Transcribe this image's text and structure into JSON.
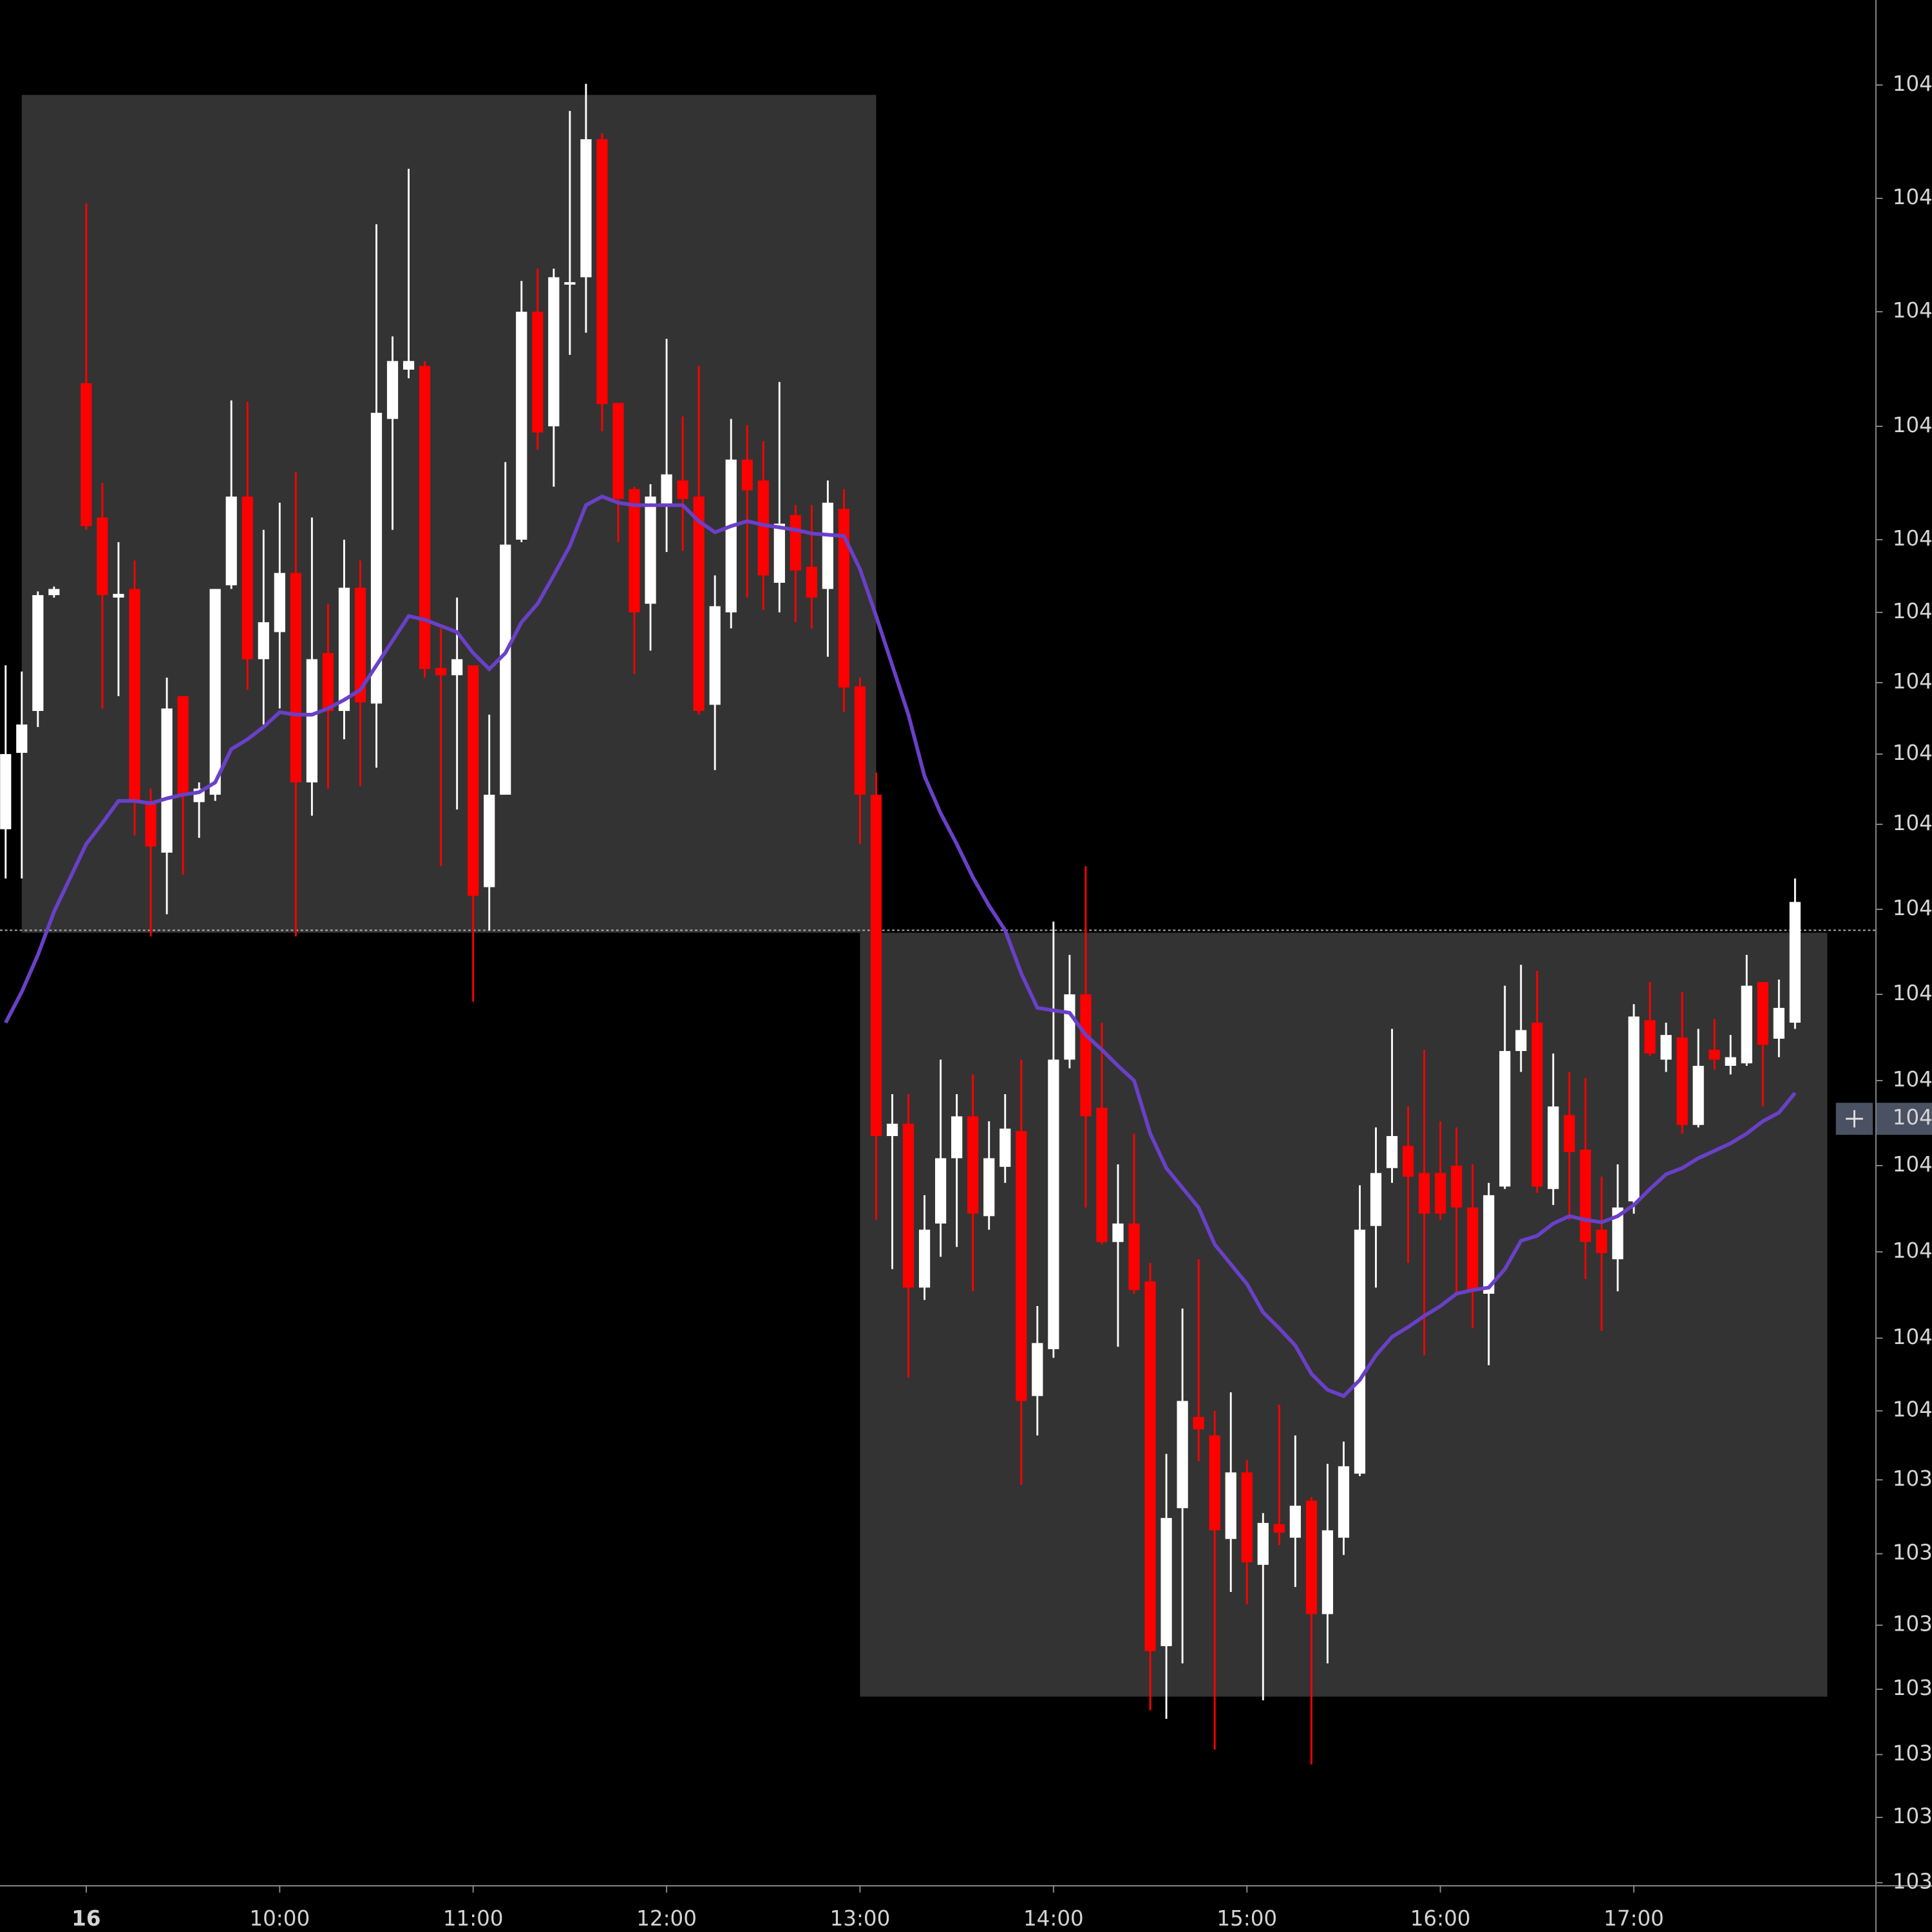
{
  "chart_data": {
    "type": "candlestick",
    "xlim": [
      513.25,
      1094.9
    ],
    "ylim": [
      1038.35,
      1046
    ],
    "xticks": [
      {
        "value": 540,
        "label": "16"
      },
      {
        "value": 600,
        "label": "10:00"
      },
      {
        "value": 660,
        "label": "11:00"
      },
      {
        "value": 720,
        "label": "12:00"
      },
      {
        "value": 780,
        "label": "13:00"
      },
      {
        "value": 840,
        "label": "14:00"
      },
      {
        "value": 900,
        "label": "15:00"
      },
      {
        "value": 960,
        "label": "16:00"
      },
      {
        "value": 1020,
        "label": "17:00"
      }
    ],
    "yticks": [
      {
        "value": 1045.655,
        "label": "104"
      },
      {
        "value": 1045.195,
        "label": "104"
      },
      {
        "value": 1044.735,
        "label": "104"
      },
      {
        "value": 1044.27,
        "label": "104"
      },
      {
        "value": 1043.81,
        "label": "104"
      },
      {
        "value": 1043.515,
        "label": "104"
      },
      {
        "value": 1043.23,
        "label": "104"
      },
      {
        "value": 1042.94,
        "label": "104"
      },
      {
        "value": 1042.655,
        "label": "104"
      },
      {
        "value": 1042.31,
        "label": "104"
      },
      {
        "value": 1041.965,
        "label": "104"
      },
      {
        "value": 1041.615,
        "label": "104"
      },
      {
        "value": 1041.27,
        "label": "104"
      },
      {
        "value": 1040.92,
        "label": "104"
      },
      {
        "value": 1040.57,
        "label": "104"
      },
      {
        "value": 1040.275,
        "label": "104"
      },
      {
        "value": 1039.995,
        "label": "103"
      },
      {
        "value": 1039.695,
        "label": "103"
      },
      {
        "value": 1039.405,
        "label": "103"
      },
      {
        "value": 1039.145,
        "label": "103"
      },
      {
        "value": 1038.88,
        "label": "103"
      },
      {
        "value": 1038.625,
        "label": "103"
      },
      {
        "value": 1038.36,
        "label": "103"
      }
    ],
    "up_color": "#ffffff",
    "down_color": "#ff0000",
    "x": [
      515,
      520,
      525,
      530,
      540,
      545,
      550,
      555,
      560,
      565,
      570,
      575,
      580,
      585,
      590,
      595,
      600,
      605,
      610,
      615,
      620,
      625,
      630,
      635,
      640,
      645,
      650,
      655,
      660,
      665,
      670,
      675,
      680,
      685,
      690,
      695,
      700,
      705,
      710,
      715,
      720,
      725,
      730,
      735,
      740,
      745,
      750,
      755,
      760,
      765,
      770,
      775,
      780,
      785,
      790,
      795,
      800,
      805,
      810,
      815,
      820,
      825,
      830,
      835,
      840,
      845,
      850,
      855,
      860,
      865,
      870,
      875,
      880,
      885,
      890,
      895,
      900,
      905,
      910,
      915,
      920,
      925,
      930,
      935,
      940,
      945,
      950,
      955,
      960,
      965,
      970,
      975,
      980,
      985,
      990,
      995,
      1000,
      1005,
      1010,
      1015,
      1020,
      1025,
      1030,
      1035,
      1040,
      1045,
      1050,
      1055,
      1060,
      1065,
      1070
    ],
    "open": [
      1042.635,
      1042.945,
      1043.115,
      1043.585,
      1044.445,
      1043.9,
      1043.575,
      1043.61,
      1042.75,
      1042.54,
      1043.175,
      1042.745,
      1042.775,
      1043.625,
      1043.985,
      1043.325,
      1043.435,
      1043.675,
      1042.825,
      1043.35,
      1043.115,
      1043.615,
      1043.145,
      1044.3,
      1044.5,
      1044.515,
      1043.29,
      1043.26,
      1043.3,
      1042.4,
      1042.775,
      1043.81,
      1044.735,
      1044.27,
      1044.845,
      1044.875,
      1045.435,
      1044.365,
      1044.015,
      1043.55,
      1043.95,
      1044.05,
      1043.985,
      1043.14,
      1043.515,
      1044.135,
      1044.05,
      1043.635,
      1043.91,
      1043.7,
      1043.61,
      1043.935,
      1043.215,
      1042.775,
      1041.39,
      1041.44,
      1040.775,
      1041.035,
      1041.3,
      1041.47,
      1041.065,
      1041.265,
      1041.41,
      1040.335,
      1040.525,
      1041.7,
      1041.965,
      1041.505,
      1040.96,
      1041.035,
      1040.8,
      1039.32,
      1039.88,
      1040.25,
      1040.175,
      1039.755,
      1040.025,
      1039.65,
      1039.815,
      1039.76,
      1039.91,
      1039.45,
      1039.76,
      1040.02,
      1041.025,
      1041.26,
      1041.35,
      1041.24,
      1041.24,
      1041.27,
      1041.1,
      1040.75,
      1041.185,
      1041.735,
      1041.85,
      1041.175,
      1041.475,
      1041.335,
      1041.01,
      1040.89,
      1041.125,
      1041.86,
      1041.7,
      1041.79,
      1041.435,
      1041.74,
      1041.675,
      1041.685,
      1042.015,
      1041.785,
      1041.85
    ],
    "high": [
      1043.3,
      1043.275,
      1043.6,
      1043.62,
      1045.175,
      1044.04,
      1043.8,
      1043.725,
      1042.8,
      1043.25,
      1043.175,
      1042.825,
      1043.61,
      1044.375,
      1044.37,
      1043.85,
      1043.96,
      1044.085,
      1043.9,
      1043.55,
      1043.81,
      1043.725,
      1045.09,
      1044.635,
      1045.315,
      1044.535,
      1043.45,
      1043.575,
      1043.3,
      1043.1,
      1044.125,
      1044.86,
      1044.91,
      1044.91,
      1045.55,
      1045.66,
      1045.46,
      1044.365,
      1044.025,
      1044.035,
      1044.625,
      1044.31,
      1044.515,
      1043.665,
      1044.3,
      1044.275,
      1044.21,
      1044.45,
      1043.95,
      1043.95,
      1044.05,
      1044.015,
      1043.25,
      1042.865,
      1041.56,
      1041.56,
      1041.15,
      1041.7,
      1041.56,
      1041.64,
      1041.45,
      1041.56,
      1041.7,
      1040.7,
      1042.26,
      1042.125,
      1042.485,
      1041.85,
      1041.275,
      1041.4,
      1040.875,
      1040.1,
      1040.69,
      1040.89,
      1040.275,
      1040.35,
      1040.075,
      1039.86,
      1040.3,
      1040.175,
      1039.925,
      1040.06,
      1040.15,
      1041.19,
      1041.425,
      1041.825,
      1041.51,
      1041.74,
      1041.45,
      1041.425,
      1041.275,
      1041.2,
      1042.0,
      1042.085,
      1042.06,
      1041.725,
      1041.65,
      1041.625,
      1041.225,
      1041.275,
      1041.925,
      1042.015,
      1041.85,
      1041.975,
      1041.825,
      1041.865,
      1041.8,
      1042.125,
      1042.015,
      1042.025,
      1042.435
    ],
    "low": [
      1042.435,
      1042.435,
      1043.05,
      1043.575,
      1043.85,
      1043.125,
      1043.175,
      1042.61,
      1042.2,
      1042.29,
      1042.45,
      1042.6,
      1042.75,
      1043.61,
      1043.2,
      1043.06,
      1043.125,
      1042.2,
      1042.69,
      1042.8,
      1043.0,
      1042.81,
      1042.885,
      1043.85,
      1044.465,
      1043.25,
      1042.485,
      1042.715,
      1041.935,
      1042.225,
      1042.775,
      1043.8,
      1044.175,
      1044.025,
      1044.56,
      1044.65,
      1044.25,
      1043.8,
      1043.265,
      1043.36,
      1043.76,
      1043.765,
      1043.1,
      1042.875,
      1043.45,
      1043.575,
      1043.525,
      1043.515,
      1043.475,
      1043.45,
      1043.335,
      1043.11,
      1042.575,
      1041.05,
      1040.85,
      1040.41,
      1040.725,
      1040.9,
      1040.94,
      1040.76,
      1041.01,
      1041.2,
      1039.975,
      1040.175,
      1040.49,
      1041.665,
      1041.1,
      1040.95,
      1040.535,
      1040.75,
      1039.06,
      1039.025,
      1039.25,
      1040.07,
      1038.9,
      1039.54,
      1039.49,
      1039.1,
      1039.73,
      1039.56,
      1038.84,
      1039.25,
      1039.69,
      1040.01,
      1040.775,
      1041.2,
      1040.875,
      1040.5,
      1041.05,
      1040.75,
      1040.61,
      1040.46,
      1041.175,
      1041.65,
      1041.16,
      1041.11,
      1041.05,
      1040.81,
      1040.6,
      1040.76,
      1041.075,
      1041.715,
      1041.65,
      1041.4,
      1041.425,
      1041.66,
      1041.64,
      1041.675,
      1041.51,
      1041.71,
      1041.825
    ],
    "close": [
      1042.94,
      1043.06,
      1043.585,
      1043.61,
      1043.865,
      1043.585,
      1043.59,
      1042.75,
      1042.565,
      1043.125,
      1042.775,
      1042.8,
      1043.61,
      1043.985,
      1043.325,
      1043.475,
      1043.675,
      1042.825,
      1043.325,
      1043.115,
      1043.615,
      1043.15,
      1044.325,
      1044.535,
      1044.535,
      1043.285,
      1043.26,
      1043.325,
      1042.365,
      1042.775,
      1043.79,
      1044.735,
      1044.245,
      1044.875,
      1044.855,
      1045.435,
      1044.36,
      1043.975,
      1043.515,
      1043.985,
      1044.075,
      1043.975,
      1043.115,
      1043.54,
      1044.135,
      1044.01,
      1043.665,
      1043.875,
      1043.685,
      1043.575,
      1043.96,
      1043.21,
      1042.775,
      1041.39,
      1041.44,
      1040.775,
      1041.01,
      1041.3,
      1041.47,
      1041.075,
      1041.3,
      1041.42,
      1040.315,
      1040.55,
      1041.7,
      1041.965,
      1041.47,
      1040.96,
      1041.035,
      1040.765,
      1039.3,
      1039.84,
      1040.315,
      1040.2,
      1039.79,
      1040.025,
      1039.66,
      1039.82,
      1039.78,
      1039.89,
      1039.45,
      1039.79,
      1040.05,
      1041.01,
      1041.24,
      1041.39,
      1041.225,
      1041.075,
      1041.075,
      1041.1,
      1040.76,
      1041.15,
      1041.735,
      1041.82,
      1041.185,
      1041.51,
      1041.325,
      1040.96,
      1040.915,
      1041.1,
      1041.875,
      1041.725,
      1041.8,
      1041.435,
      1041.675,
      1041.7,
      1041.71,
      1042.0,
      1041.76,
      1041.91,
      1042.34
    ],
    "ma": {
      "color": "#6a40c8",
      "values": [
        1041.85,
        1041.975,
        1042.125,
        1042.3,
        1042.575,
        1042.66,
        1042.75,
        1042.75,
        1042.74,
        1042.76,
        1042.775,
        1042.785,
        1042.825,
        1042.96,
        1043.0,
        1043.05,
        1043.11,
        1043.1,
        1043.1,
        1043.125,
        1043.16,
        1043.2,
        1043.3,
        1043.4,
        1043.5,
        1043.485,
        1043.46,
        1043.435,
        1043.35,
        1043.285,
        1043.35,
        1043.475,
        1043.55,
        1043.665,
        1043.785,
        1043.95,
        1043.985,
        1043.96,
        1043.95,
        1043.95,
        1043.95,
        1043.95,
        1043.885,
        1043.84,
        1043.865,
        1043.885,
        1043.87,
        1043.86,
        1043.85,
        1043.835,
        1043.83,
        1043.825,
        1043.69,
        1043.5,
        1043.3,
        1043.1,
        1042.85,
        1042.7,
        1042.575,
        1042.44,
        1042.325,
        1042.225,
        1042.05,
        1041.91,
        1041.9,
        1041.89,
        1041.8,
        1041.74,
        1041.675,
        1041.615,
        1041.4,
        1041.26,
        1041.18,
        1041.1,
        1040.95,
        1040.87,
        1040.79,
        1040.675,
        1040.61,
        1040.54,
        1040.425,
        1040.36,
        1040.335,
        1040.4,
        1040.5,
        1040.575,
        1040.615,
        1040.66,
        1040.7,
        1040.75,
        1040.765,
        1040.775,
        1040.85,
        1040.965,
        1040.985,
        1041.035,
        1041.065,
        1041.05,
        1041.04,
        1041.065,
        1041.11,
        1041.175,
        1041.235,
        1041.26,
        1041.3,
        1041.33,
        1041.36,
        1041.4,
        1041.45,
        1041.485,
        1041.565
      ]
    },
    "ranges": {
      "color": "#333333",
      "items": [
        {
          "x": [
            520,
            785
          ],
          "y": [
            1042.215,
            1045.615
          ]
        },
        {
          "x": [
            780,
            1080
          ],
          "y": [
            1039.115,
            1042.215
          ]
        }
      ]
    },
    "price_line": 1042.225,
    "crosshair": {
      "value": 1041.46,
      "label": "104"
    }
  }
}
